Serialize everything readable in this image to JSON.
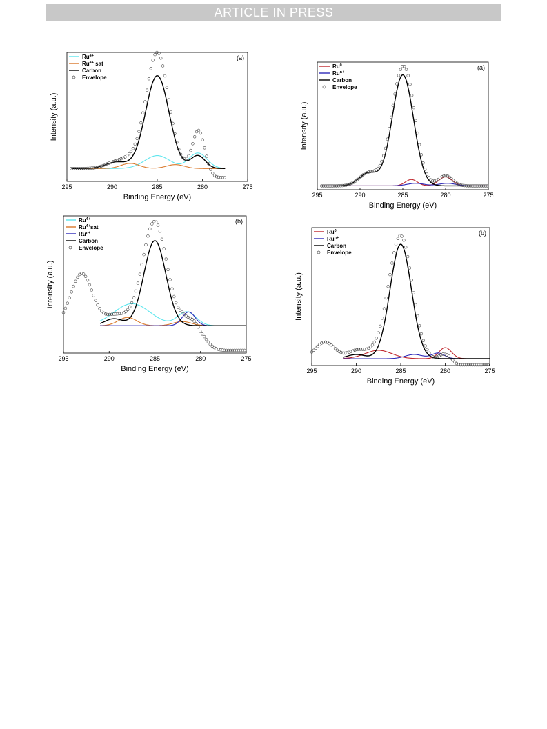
{
  "banner": {
    "text": "ARTICLE IN PRESS"
  },
  "chart_data": [
    {
      "type": "line",
      "panel_label": "(a)",
      "xlabel": "Binding Energy (eV)",
      "ylabel": "Intensity (a.u.)",
      "xlim": [
        295,
        275
      ],
      "x_ticks": [
        295,
        290,
        285,
        280,
        275
      ],
      "x_range": [
        294.5,
        277.5
      ],
      "baseline": 0.1,
      "legend": [
        {
          "base": "Ru",
          "sup": "4+",
          "suffix": "",
          "color": "#5ee6ee",
          "kind": "line"
        },
        {
          "base": "Ru",
          "sup": "4+",
          "suffix": " sat",
          "color": "#d9782a",
          "kind": "line"
        },
        {
          "base": "Carbon",
          "sup": "",
          "suffix": "",
          "color": "#000000",
          "kind": "line"
        },
        {
          "base": "Envelope",
          "sup": "",
          "suffix": "",
          "color": "#555555",
          "kind": "marker"
        }
      ],
      "series": [
        {
          "color": "#5ee6ee",
          "peaks": [
            {
              "center": 285.0,
              "height": 0.1,
              "width": 1.4
            },
            {
              "center": 280.5,
              "height": 0.12,
              "width": 1.0
            }
          ]
        },
        {
          "color": "#d9782a",
          "peaks": [
            {
              "center": 288.0,
              "height": 0.04,
              "width": 1.0
            },
            {
              "center": 283.0,
              "height": 0.03,
              "width": 1.0
            }
          ]
        },
        {
          "color": "#000000",
          "peaks": [
            {
              "center": 285.0,
              "height": 0.72,
              "width": 1.3
            },
            {
              "center": 289.5,
              "height": 0.05,
              "width": 1.2
            },
            {
              "center": 280.5,
              "height": 0.1,
              "width": 0.8
            }
          ]
        }
      ],
      "envelope_peaks": [
        {
          "center": 285.0,
          "height": 0.9,
          "width": 1.25
        },
        {
          "center": 280.4,
          "height": 0.35,
          "width": 0.7
        },
        {
          "center": 289.5,
          "height": 0.05,
          "width": 1.2
        },
        {
          "center": 287.8,
          "height": 0.05,
          "width": 1.0
        }
      ],
      "envelope_tail_drop": 0.07
    },
    {
      "type": "line",
      "panel_label": "(a)",
      "xlabel": "Binding Energy (eV)",
      "ylabel": "Intensity (a.u.)",
      "xlim": [
        295,
        275
      ],
      "x_ticks": [
        295,
        290,
        285,
        280,
        275
      ],
      "x_range": [
        294.5,
        275.0
      ],
      "baseline": 0.03,
      "legend": [
        {
          "base": "Ru",
          "sup": "0",
          "suffix": "",
          "color": "#c0272d",
          "kind": "line"
        },
        {
          "base": "Ru",
          "sup": "n+",
          "suffix": "",
          "color": "#2e2ab8",
          "kind": "line"
        },
        {
          "base": "Carbon",
          "sup": "",
          "suffix": "",
          "color": "#000000",
          "kind": "line"
        },
        {
          "base": "Envelope",
          "sup": "",
          "suffix": "",
          "color": "#555555",
          "kind": "marker"
        }
      ],
      "series": [
        {
          "color": "#c0272d",
          "peaks": [
            {
              "center": 284.0,
              "height": 0.05,
              "width": 0.7
            },
            {
              "center": 280.0,
              "height": 0.07,
              "width": 0.8
            }
          ]
        },
        {
          "color": "#2e2ab8",
          "peaks": [
            {
              "center": 283.5,
              "height": 0.02,
              "width": 1.0
            },
            {
              "center": 279.8,
              "height": 0.02,
              "width": 1.0
            }
          ]
        },
        {
          "color": "#000000",
          "peaks": [
            {
              "center": 285.0,
              "height": 0.87,
              "width": 1.25
            },
            {
              "center": 289.0,
              "height": 0.1,
              "width": 1.1
            }
          ]
        }
      ],
      "envelope_peaks": [
        {
          "center": 285.0,
          "height": 0.92,
          "width": 1.3
        },
        {
          "center": 289.0,
          "height": 0.1,
          "width": 1.1
        },
        {
          "center": 280.0,
          "height": 0.08,
          "width": 0.8
        },
        {
          "center": 284.0,
          "height": 0.05,
          "width": 0.7
        }
      ],
      "envelope_tail_drop": 0.0
    },
    {
      "type": "line",
      "panel_label": "(b)",
      "xlabel": "Binding Energy (eV)",
      "ylabel": "Intensity (a.u.)",
      "xlim": [
        295,
        275
      ],
      "x_ticks": [
        295,
        290,
        285,
        280,
        275
      ],
      "x_range": [
        295.0,
        275.0
      ],
      "fit_start": 291.0,
      "baseline": 0.2,
      "legend": [
        {
          "base": "Ru",
          "sup": "4+",
          "suffix": "",
          "color": "#5ee6ee",
          "kind": "line"
        },
        {
          "base": "Ru",
          "sup": "4+",
          "suffix": "sat",
          "color": "#d9782a",
          "kind": "line"
        },
        {
          "base": "Ru",
          "sup": "n+",
          "suffix": "",
          "color": "#2e2ab8",
          "kind": "line"
        },
        {
          "base": "Carbon",
          "sup": "",
          "suffix": "",
          "color": "#000000",
          "kind": "line"
        },
        {
          "base": "Envelope",
          "sup": "",
          "suffix": "",
          "color": "#555555",
          "kind": "marker"
        }
      ],
      "series": [
        {
          "color": "#5ee6ee",
          "peaks": [
            {
              "center": 287.5,
              "height": 0.16,
              "width": 2.0
            },
            {
              "center": 281.5,
              "height": 0.1,
              "width": 1.0
            }
          ]
        },
        {
          "color": "#d9782a",
          "peaks": [
            {
              "center": 288.0,
              "height": 0.06,
              "width": 1.0
            },
            {
              "center": 282.0,
              "height": 0.03,
              "width": 1.0
            }
          ]
        },
        {
          "color": "#2e2ab8",
          "peaks": [
            {
              "center": 281.3,
              "height": 0.1,
              "width": 0.7
            }
          ]
        },
        {
          "color": "#000000",
          "peaks": [
            {
              "center": 285.0,
              "height": 0.62,
              "width": 1.2
            },
            {
              "center": 289.5,
              "height": 0.05,
              "width": 1.0
            }
          ]
        }
      ],
      "envelope_peaks": [
        {
          "center": 285.0,
          "height": 0.75,
          "width": 1.3
        },
        {
          "center": 289.5,
          "height": 0.06,
          "width": 1.1
        },
        {
          "center": 280.5,
          "height": 0.15,
          "width": 1.0
        },
        {
          "center": 287.5,
          "height": 0.04,
          "width": 1.5
        },
        {
          "center": 293.0,
          "height": 0.38,
          "width": 1.2
        }
      ],
      "envelope_tail_drop": 0.18
    },
    {
      "type": "line",
      "panel_label": "(b)",
      "xlabel": "Binding Energy (eV)",
      "ylabel": "Intensity (a.u.)",
      "xlim": [
        295,
        275
      ],
      "x_ticks": [
        295,
        290,
        285,
        280,
        275
      ],
      "x_range": [
        295.0,
        275.0
      ],
      "fit_start": 291.5,
      "baseline": 0.05,
      "legend": [
        {
          "base": "Ru",
          "sup": "0",
          "suffix": "",
          "color": "#c0272d",
          "kind": "line"
        },
        {
          "base": "Ru",
          "sup": "n+",
          "suffix": "",
          "color": "#2e2ab8",
          "kind": "line"
        },
        {
          "base": "Carbon",
          "sup": "",
          "suffix": "",
          "color": "#000000",
          "kind": "line"
        },
        {
          "base": "Envelope",
          "sup": "",
          "suffix": "",
          "color": "#555555",
          "kind": "marker"
        }
      ],
      "series": [
        {
          "color": "#c0272d",
          "peaks": [
            {
              "center": 287.5,
              "height": 0.06,
              "width": 1.5
            },
            {
              "center": 280.0,
              "height": 0.08,
              "width": 0.7
            }
          ]
        },
        {
          "color": "#2e2ab8",
          "peaks": [
            {
              "center": 283.5,
              "height": 0.03,
              "width": 1.0
            },
            {
              "center": 280.8,
              "height": 0.04,
              "width": 0.7
            }
          ]
        },
        {
          "color": "#000000",
          "peaks": [
            {
              "center": 285.0,
              "height": 0.83,
              "width": 1.2
            },
            {
              "center": 290.0,
              "height": 0.03,
              "width": 1.0
            }
          ]
        }
      ],
      "envelope_peaks": [
        {
          "center": 285.0,
          "height": 0.88,
          "width": 1.3
        },
        {
          "center": 290.0,
          "height": 0.05,
          "width": 1.0
        },
        {
          "center": 280.0,
          "height": 0.08,
          "width": 0.7
        },
        {
          "center": 287.5,
          "height": 0.05,
          "width": 1.5
        },
        {
          "center": 293.5,
          "height": 0.12,
          "width": 1.1
        }
      ],
      "envelope_tail_drop": 0.05
    }
  ]
}
